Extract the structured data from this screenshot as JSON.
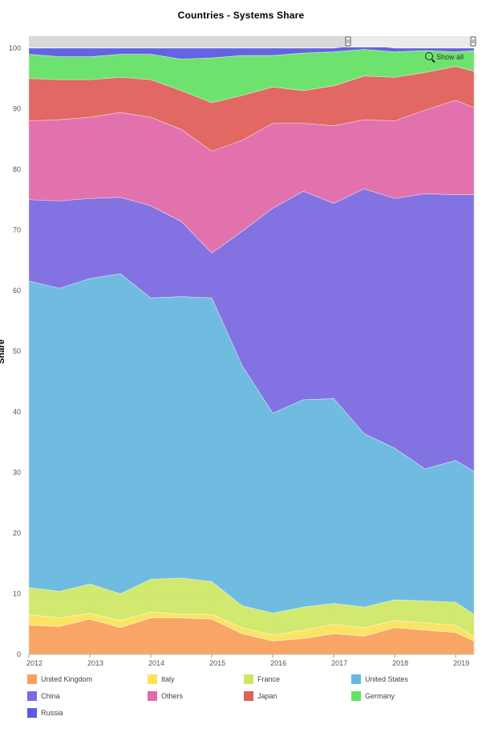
{
  "chart_data": {
    "type": "area",
    "stacked": true,
    "title": "Countries - Systems Share",
    "xlabel": "",
    "ylabel": "Share",
    "ylim": [
      0,
      100
    ],
    "yticks": [
      "0",
      "10",
      "20",
      "30",
      "40",
      "50",
      "60",
      "70",
      "80",
      "90",
      "100"
    ],
    "xticks": [
      "2012",
      "2013",
      "2014",
      "2015",
      "2016",
      "2017",
      "2018",
      "2019"
    ],
    "x": [
      2012.0,
      2012.5,
      2013.0,
      2013.5,
      2014.0,
      2014.5,
      2015.0,
      2015.5,
      2016.0,
      2016.5,
      2017.0,
      2017.5,
      2018.0,
      2018.5,
      2019.0,
      2019.3
    ],
    "grid": true,
    "legend_position": "bottom",
    "show_all_label": "Show all",
    "series": [
      {
        "name": "United Kingdom",
        "color": "#f9a05e",
        "values": [
          4.8,
          4.6,
          5.8,
          4.4,
          6.0,
          6.0,
          5.8,
          3.4,
          2.2,
          2.6,
          3.4,
          3.0,
          4.4,
          4.0,
          3.6,
          2.2
        ]
      },
      {
        "name": "Italy",
        "color": "#fbe35d",
        "values": [
          1.8,
          1.4,
          1.0,
          1.2,
          1.0,
          0.6,
          0.8,
          1.0,
          1.0,
          1.4,
          1.6,
          1.4,
          1.2,
          1.2,
          1.2,
          0.8
        ]
      },
      {
        "name": "France",
        "color": "#cde866",
        "values": [
          4.4,
          4.4,
          4.8,
          4.4,
          5.4,
          6.0,
          5.4,
          3.6,
          3.6,
          3.8,
          3.4,
          3.4,
          3.4,
          3.6,
          3.8,
          3.6
        ]
      },
      {
        "name": "United States",
        "color": "#67b8de",
        "values": [
          50.6,
          50.0,
          50.4,
          52.8,
          46.4,
          46.4,
          46.8,
          39.6,
          33.0,
          34.2,
          33.8,
          28.6,
          25.0,
          21.8,
          23.4,
          23.6
        ]
      },
      {
        "name": "China",
        "color": "#7b6ae0",
        "values": [
          13.4,
          14.4,
          13.2,
          12.6,
          15.2,
          12.4,
          7.4,
          22.2,
          33.8,
          34.4,
          32.2,
          40.4,
          41.2,
          45.4,
          43.8,
          45.6
        ]
      },
      {
        "name": "Others",
        "color": "#e06aaa",
        "values": [
          13.0,
          13.4,
          13.4,
          14.0,
          14.6,
          15.2,
          16.8,
          15.0,
          14.0,
          11.2,
          12.8,
          11.4,
          12.8,
          13.8,
          15.6,
          14.4
        ]
      },
      {
        "name": "Japan",
        "color": "#e0605c",
        "values": [
          7.0,
          6.6,
          6.2,
          5.8,
          6.2,
          6.4,
          8.0,
          7.4,
          6.0,
          5.4,
          6.6,
          7.2,
          7.2,
          6.2,
          5.6,
          6.0
        ]
      },
      {
        "name": "Germany",
        "color": "#66e066",
        "values": [
          4.0,
          3.8,
          3.8,
          3.8,
          4.2,
          5.2,
          7.4,
          6.6,
          5.2,
          6.2,
          5.6,
          4.4,
          4.2,
          3.6,
          2.4,
          3.4
        ]
      },
      {
        "name": "Russia",
        "color": "#5a5ce0",
        "values": [
          1.0,
          1.4,
          1.4,
          1.0,
          1.0,
          1.8,
          1.6,
          1.2,
          1.2,
          0.8,
          0.6,
          0.8,
          0.6,
          0.4,
          0.6,
          0.4
        ]
      }
    ]
  }
}
